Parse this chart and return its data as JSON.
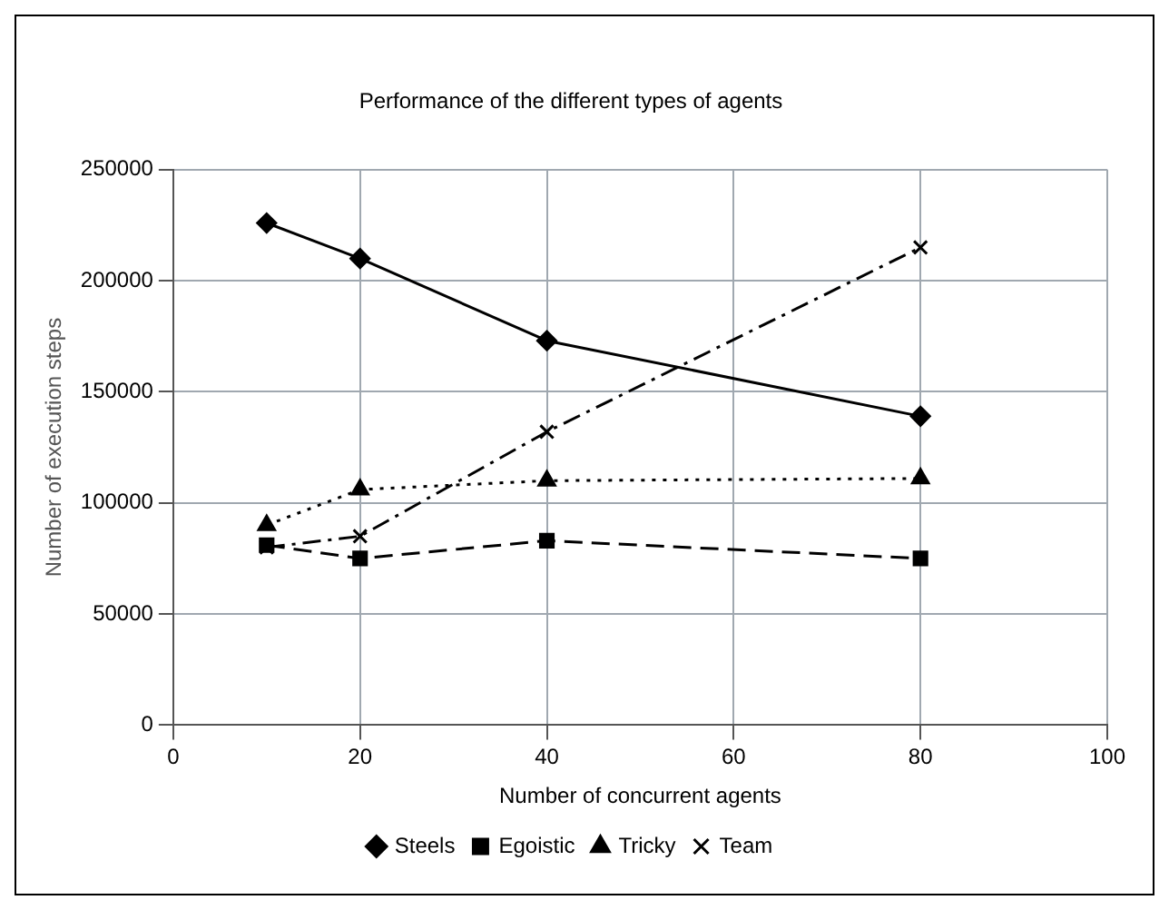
{
  "chart_data": {
    "type": "line",
    "title": "Performance of the different types of agents",
    "xlabel": "Number of concurrent agents",
    "ylabel": "Number of execution steps",
    "x": [
      10,
      20,
      40,
      80
    ],
    "series": [
      {
        "name": "Steels",
        "color": "#000000",
        "values": [
          226000,
          210000,
          173000,
          139000
        ],
        "marker": "diamond",
        "line_style": "solid"
      },
      {
        "name": "Egoistic",
        "color": "#000000",
        "values": [
          81000,
          75000,
          83000,
          75000
        ],
        "marker": "square",
        "line_style": "dashed"
      },
      {
        "name": "Tricky",
        "color": "#000000",
        "values": [
          90000,
          106000,
          110000,
          111000
        ],
        "marker": "triangle",
        "line_style": "dotted"
      },
      {
        "name": "Team",
        "color": "#000000",
        "values": [
          80000,
          85000,
          132000,
          215000
        ],
        "marker": "cross",
        "line_style": "dashdot"
      }
    ],
    "xlim": [
      0,
      100
    ],
    "xticks": [
      0,
      20,
      40,
      60,
      80,
      100
    ],
    "ylim": [
      0,
      250000
    ],
    "yticks": [
      0,
      50000,
      100000,
      150000,
      200000,
      250000
    ],
    "grid": true,
    "legend": "bottom"
  }
}
